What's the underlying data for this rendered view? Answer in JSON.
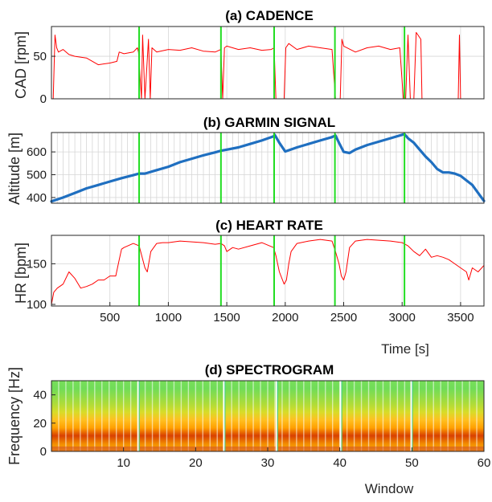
{
  "chart_data": [
    {
      "type": "line",
      "title": "(a) CADENCE",
      "ylabel": "CAD [rpm]",
      "xlabel": "",
      "xlim": [
        0,
        3700
      ],
      "ylim": [
        0,
        85
      ],
      "yticks": [
        0,
        50
      ],
      "xticks": [],
      "grid": true,
      "series": [
        {
          "color": "#ff0000",
          "x": [
            0,
            15,
            30,
            45,
            60,
            100,
            150,
            200,
            300,
            400,
            500,
            560,
            580,
            620,
            700,
            735,
            745,
            770,
            780,
            800,
            830,
            845,
            860,
            900,
            1000,
            1100,
            1200,
            1300,
            1400,
            1450,
            1465,
            1480,
            1500,
            1600,
            1700,
            1800,
            1880,
            1905,
            1920,
            1935,
            1990,
            2005,
            2030,
            2100,
            2200,
            2300,
            2400,
            2430,
            2445,
            2470,
            2485,
            2500,
            2600,
            2700,
            2800,
            2900,
            2980,
            3010,
            3030,
            3050,
            3070,
            3100,
            3120,
            3160,
            3170,
            3200,
            3250,
            3300,
            3400,
            3480,
            3490,
            3500,
            3520,
            3530,
            3600,
            3700
          ],
          "y": [
            0,
            0,
            75,
            60,
            55,
            58,
            52,
            50,
            48,
            40,
            42,
            44,
            55,
            53,
            55,
            60,
            55,
            0,
            75,
            0,
            70,
            0,
            60,
            55,
            58,
            57,
            60,
            56,
            55,
            58,
            0,
            60,
            62,
            58,
            60,
            57,
            58,
            60,
            0,
            0,
            0,
            60,
            65,
            58,
            62,
            60,
            58,
            0,
            0,
            0,
            70,
            62,
            55,
            60,
            62,
            58,
            60,
            0,
            0,
            75,
            0,
            0,
            78,
            70,
            0,
            0,
            0,
            0,
            0,
            0,
            75,
            0,
            0,
            0,
            0,
            0
          ]
        }
      ],
      "markers": [
        750,
        1450,
        1905,
        2425,
        3020
      ]
    },
    {
      "type": "line",
      "title": "(b) GARMIN SIGNAL",
      "ylabel": "Altitude [m]",
      "xlabel": "",
      "xlim": [
        0,
        3700
      ],
      "ylim": [
        375,
        685
      ],
      "yticks": [
        400,
        500,
        600
      ],
      "xticks": [],
      "grid": true,
      "series": [
        {
          "color": "#1f6fc0",
          "x": [
            0,
            100,
            200,
            300,
            400,
            500,
            600,
            700,
            750,
            800,
            900,
            1000,
            1100,
            1200,
            1300,
            1400,
            1450,
            1500,
            1600,
            1700,
            1800,
            1900,
            1910,
            1950,
            2000,
            2100,
            2200,
            2300,
            2400,
            2430,
            2460,
            2500,
            2550,
            2600,
            2700,
            2800,
            2900,
            3000,
            3020,
            3050,
            3100,
            3150,
            3200,
            3250,
            3300,
            3350,
            3400,
            3450,
            3500,
            3550,
            3600,
            3650,
            3700
          ],
          "y": [
            383,
            400,
            420,
            440,
            455,
            470,
            485,
            498,
            505,
            505,
            520,
            535,
            555,
            570,
            585,
            598,
            605,
            610,
            620,
            635,
            650,
            668,
            675,
            640,
            602,
            620,
            635,
            650,
            665,
            672,
            640,
            600,
            595,
            610,
            630,
            645,
            660,
            675,
            678,
            660,
            640,
            610,
            580,
            555,
            525,
            510,
            510,
            505,
            495,
            475,
            455,
            420,
            385
          ]
        }
      ],
      "markers": [
        750,
        1450,
        1905,
        2425,
        3020
      ]
    },
    {
      "type": "line",
      "title": "(c) HEART RATE",
      "ylabel": "HR [bpm]",
      "xlabel": "Time [s]",
      "xlim": [
        0,
        3700
      ],
      "ylim": [
        98,
        185
      ],
      "yticks": [
        100,
        150
      ],
      "xticks": [
        500,
        1000,
        1500,
        2000,
        2500,
        3000,
        3500
      ],
      "grid": true,
      "series": [
        {
          "color": "#ff0000",
          "x": [
            0,
            20,
            50,
            100,
            150,
            200,
            250,
            300,
            350,
            400,
            450,
            500,
            550,
            580,
            600,
            620,
            700,
            750,
            800,
            820,
            850,
            900,
            950,
            1000,
            1100,
            1200,
            1300,
            1400,
            1450,
            1480,
            1500,
            1550,
            1600,
            1700,
            1800,
            1900,
            1920,
            1950,
            1990,
            2010,
            2030,
            2050,
            2100,
            2200,
            2300,
            2400,
            2430,
            2460,
            2480,
            2500,
            2520,
            2550,
            2600,
            2700,
            2800,
            2900,
            3000,
            3050,
            3100,
            3150,
            3200,
            3250,
            3300,
            3350,
            3400,
            3450,
            3500,
            3550,
            3570,
            3600,
            3650,
            3700
          ],
          "y": [
            100,
            115,
            120,
            125,
            140,
            132,
            120,
            122,
            125,
            130,
            130,
            135,
            135,
            155,
            168,
            170,
            175,
            172,
            145,
            140,
            165,
            175,
            176,
            176,
            178,
            177,
            176,
            174,
            175,
            172,
            165,
            170,
            168,
            172,
            176,
            170,
            160,
            140,
            125,
            130,
            150,
            165,
            175,
            178,
            180,
            178,
            165,
            150,
            135,
            130,
            140,
            170,
            178,
            180,
            179,
            178,
            176,
            172,
            165,
            160,
            168,
            158,
            160,
            158,
            155,
            150,
            145,
            140,
            130,
            145,
            140,
            148
          ]
        }
      ],
      "markers": [
        750,
        1450,
        1905,
        2425,
        3020
      ]
    },
    {
      "type": "heatmap",
      "title": "(d) SPECTROGRAM",
      "ylabel": "Frequency [Hz]",
      "xlabel": "Window",
      "xlim": [
        0,
        60
      ],
      "ylim": [
        0,
        50
      ],
      "yticks": [
        0,
        20,
        40
      ],
      "xticks": [
        10,
        20,
        30,
        40,
        50,
        60
      ],
      "grid": true,
      "gradient": [
        "#ffb300",
        "#f28a00",
        "#d84000",
        "#ffa000",
        "#ffc020",
        "#d8dc28",
        "#b0dc38",
        "#90dc48",
        "#70dc58",
        "#78df5a"
      ],
      "markers": [
        12,
        23.9,
        31.2,
        40.1,
        49.9
      ]
    }
  ]
}
